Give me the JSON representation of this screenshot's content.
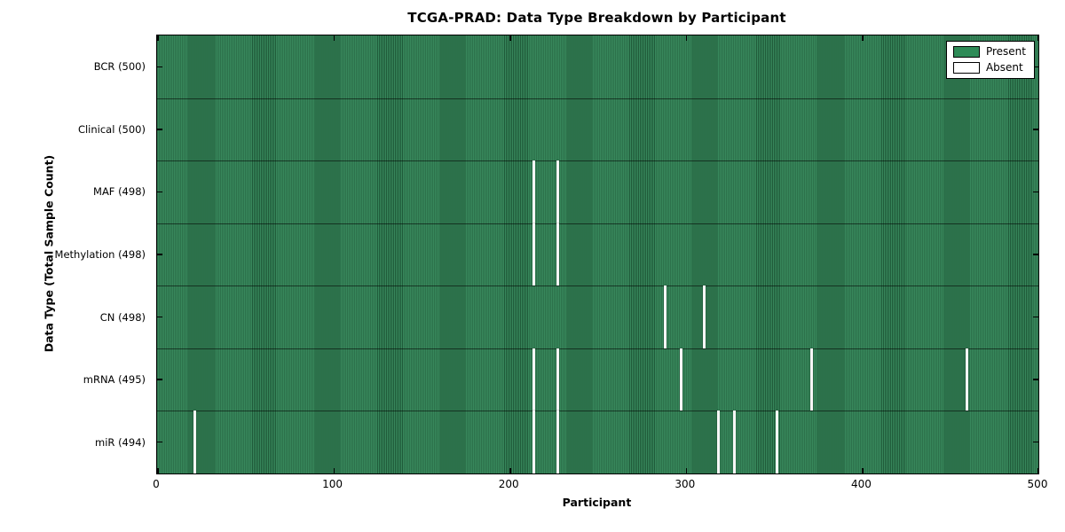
{
  "chart_data": {
    "type": "heatmap",
    "title": "TCGA-PRAD: Data Type Breakdown by Participant",
    "xlabel": "Participant",
    "ylabel": "Data Type (Total Sample Count)",
    "xlim": [
      0,
      500
    ],
    "n_participants": 500,
    "x_ticks": [
      0,
      100,
      200,
      300,
      400,
      500
    ],
    "grid": false,
    "legend_position": "upper right",
    "colors": {
      "present": "#2e8b57",
      "absent": "#ffffff",
      "bar_edge": "#1b5038"
    },
    "rows": [
      {
        "label": "BCR (500)",
        "total": 500,
        "absent_participants": []
      },
      {
        "label": "Clinical (500)",
        "total": 500,
        "absent_participants": []
      },
      {
        "label": "MAF (498)",
        "total": 498,
        "absent_participants": [
          213,
          227
        ]
      },
      {
        "label": "Methylation (498)",
        "total": 498,
        "absent_participants": [
          213,
          227
        ]
      },
      {
        "label": "CN (498)",
        "total": 498,
        "absent_participants": [
          288,
          310
        ]
      },
      {
        "label": "mRNA (495)",
        "total": 495,
        "absent_participants": [
          213,
          227,
          297,
          371,
          459
        ]
      },
      {
        "label": "miR (494)",
        "total": 494,
        "absent_participants": [
          21,
          213,
          227,
          318,
          327,
          351
        ]
      }
    ],
    "legend": [
      {
        "label": "Present",
        "color": "#2e8b57"
      },
      {
        "label": "Absent",
        "color": "#ffffff"
      }
    ]
  }
}
